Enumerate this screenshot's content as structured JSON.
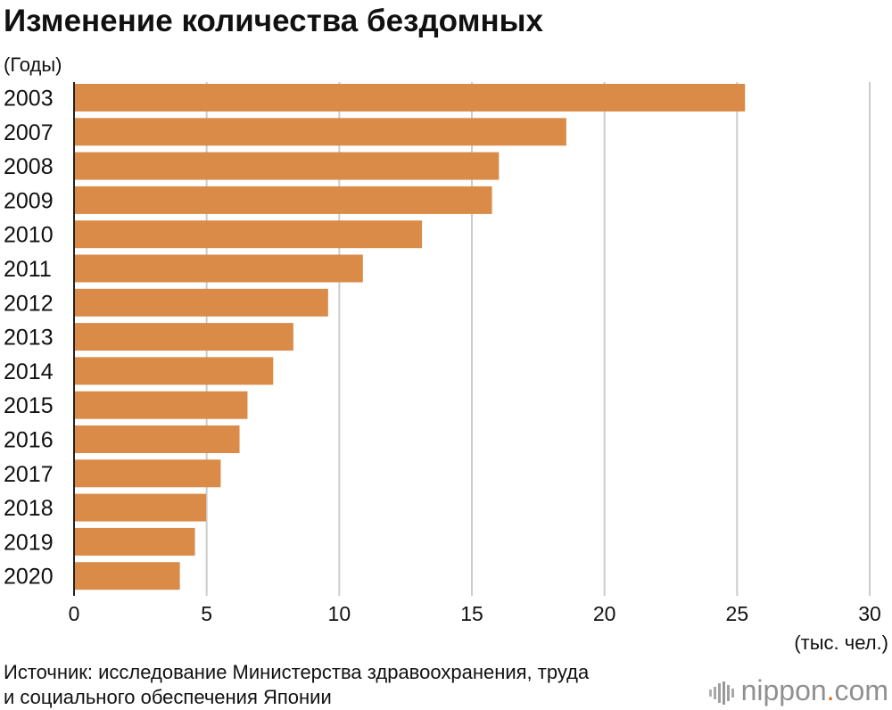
{
  "chart_data": {
    "type": "bar",
    "orientation": "horizontal",
    "title": "Изменение количества бездомных",
    "ylabel": "(Годы)",
    "xlabel": "(тыс. чел.)",
    "categories": [
      "2003",
      "2007",
      "2008",
      "2009",
      "2010",
      "2011",
      "2012",
      "2013",
      "2014",
      "2015",
      "2016",
      "2017",
      "2018",
      "2019",
      "2020"
    ],
    "values": [
      25.3,
      18.56,
      16.02,
      15.76,
      13.12,
      10.89,
      9.58,
      8.27,
      7.51,
      6.54,
      6.24,
      5.53,
      4.98,
      4.56,
      3.99
    ],
    "xlim": [
      0,
      30
    ],
    "xticks": [
      "0",
      "5",
      "10",
      "15",
      "20",
      "25",
      "30"
    ],
    "grid": true,
    "bar_color": "#da8b47",
    "grid_color": "#cccccc"
  },
  "footer": {
    "source_line1": "Источник: исследование Министерства здравоохранения, труда",
    "source_line2": "и социального обеспечения Японии",
    "logo_name": "nippon",
    "logo_dot": ".",
    "logo_tld": "com"
  }
}
